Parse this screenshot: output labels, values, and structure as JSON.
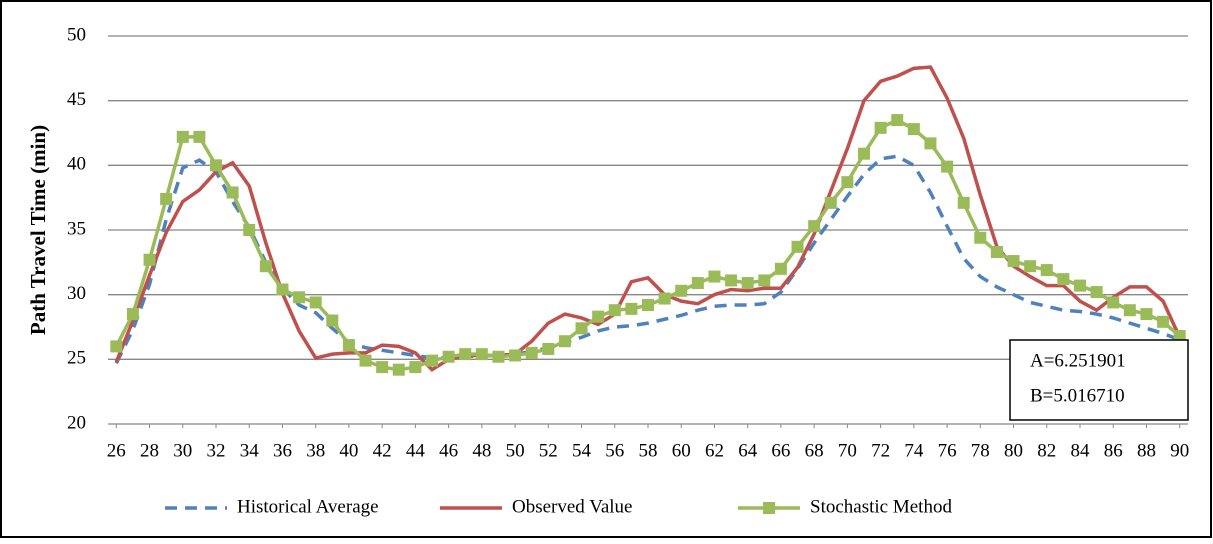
{
  "chart_data": {
    "type": "line",
    "y_label": "Path Travel  Time (min)",
    "annotations": [
      "A=6.251901",
      "B=5.016710"
    ],
    "x": [
      26,
      27,
      28,
      29,
      30,
      31,
      32,
      33,
      34,
      35,
      36,
      37,
      38,
      39,
      40,
      41,
      42,
      43,
      44,
      45,
      46,
      47,
      48,
      49,
      50,
      51,
      52,
      53,
      54,
      55,
      56,
      57,
      58,
      59,
      60,
      61,
      62,
      63,
      64,
      65,
      66,
      67,
      68,
      69,
      70,
      71,
      72,
      73,
      74,
      75,
      76,
      77,
      78,
      79,
      80,
      81,
      82,
      83,
      84,
      85,
      86,
      87,
      88,
      89,
      90
    ],
    "xlim": [
      25.5,
      90.5
    ],
    "xticks": [
      26,
      28,
      30,
      32,
      34,
      36,
      38,
      40,
      42,
      44,
      46,
      48,
      50,
      52,
      54,
      56,
      58,
      60,
      62,
      64,
      66,
      68,
      70,
      72,
      74,
      76,
      78,
      80,
      82,
      84,
      86,
      88,
      90
    ],
    "ylim": [
      20,
      50
    ],
    "yticks": [
      20,
      25,
      30,
      35,
      40,
      45,
      50
    ],
    "grid": true,
    "legend": "bottom",
    "series": [
      {
        "name": "Historical Average",
        "color": "#4f81bd",
        "dash": true,
        "marker": false,
        "values": [
          24.7,
          27.3,
          30.8,
          35.8,
          39.8,
          40.4,
          39.5,
          37.2,
          35.2,
          32.5,
          30.5,
          29.2,
          28.6,
          27.4,
          26.3,
          25.9,
          25.7,
          25.5,
          25.3,
          25.1,
          25.1,
          25.2,
          25.3,
          25.3,
          25.4,
          25.6,
          25.9,
          26.3,
          26.7,
          27.2,
          27.5,
          27.6,
          27.8,
          28.1,
          28.4,
          28.8,
          29.1,
          29.2,
          29.2,
          29.3,
          30.2,
          32,
          34,
          35.8,
          37.6,
          39.3,
          40.5,
          40.7,
          40,
          37.9,
          35.3,
          32.8,
          31.4,
          30.6,
          30,
          29.4,
          29.1,
          28.8,
          28.7,
          28.5,
          28.2,
          27.8,
          27.4,
          27,
          26.5
        ]
      },
      {
        "name": "Observed Value",
        "color": "#c0504d",
        "dash": false,
        "marker": false,
        "values": [
          24.8,
          28,
          31.5,
          34.8,
          37.2,
          38.1,
          39.5,
          40.2,
          38.4,
          34,
          30.1,
          27.2,
          25.1,
          25.4,
          25.5,
          25.5,
          26.1,
          26,
          25.5,
          24.2,
          25,
          25.3,
          25.3,
          25.3,
          25.4,
          26.4,
          27.8,
          28.5,
          28.2,
          27.7,
          28.5,
          31,
          31.3,
          30,
          29.5,
          29.3,
          30,
          30.4,
          30.3,
          30.5,
          30.5,
          32.1,
          34.7,
          38,
          41.3,
          45,
          46.5,
          46.9,
          47.5,
          47.6,
          45.2,
          42.1,
          37.7,
          33.7,
          32.2,
          31.4,
          30.7,
          30.7,
          29.5,
          28.8,
          29.8,
          30.6,
          30.6,
          29.5,
          26.7
        ]
      },
      {
        "name": "Stochastic Method",
        "color": "#9bbb59",
        "dash": false,
        "marker": true,
        "values": [
          26,
          28.5,
          32.7,
          37.4,
          42.2,
          42.2,
          40,
          37.9,
          35,
          32.2,
          30.4,
          29.8,
          29.4,
          28,
          26.1,
          24.9,
          24.4,
          24.2,
          24.4,
          24.9,
          25.2,
          25.4,
          25.4,
          25.2,
          25.3,
          25.5,
          25.8,
          26.4,
          27.4,
          28.3,
          28.8,
          28.9,
          29.2,
          29.7,
          30.3,
          30.9,
          31.4,
          31.1,
          30.9,
          31.1,
          32,
          33.7,
          35.3,
          37.1,
          38.7,
          40.9,
          42.9,
          43.5,
          42.8,
          41.7,
          39.9,
          37.1,
          34.4,
          33.3,
          32.6,
          32.2,
          31.9,
          31.2,
          30.7,
          30.2,
          29.4,
          28.8,
          28.5,
          27.9,
          26.8
        ]
      }
    ]
  }
}
